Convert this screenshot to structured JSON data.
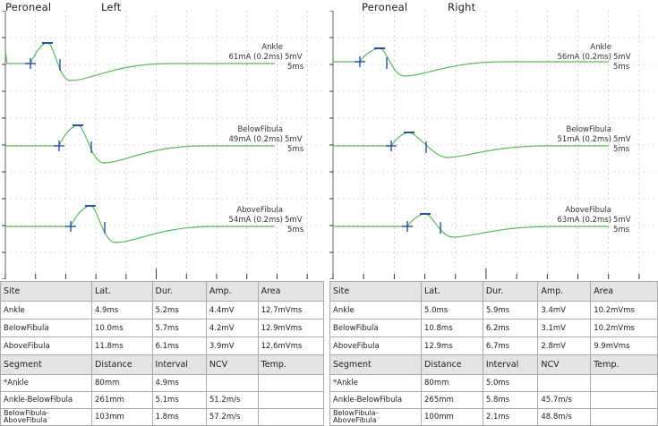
{
  "colors": {
    "trace": "#5fb85f",
    "marker": "#2b4fa3",
    "grid": "#9a9a9a",
    "table_header_bg": "#e4e4e4"
  },
  "panels": [
    {
      "nerve": "Peroneal",
      "side": "Left",
      "traces": [
        {
          "site": "Ankle",
          "stim": "61mA (0.2ms)",
          "sensitivity": "5mV",
          "sweep": "5ms"
        },
        {
          "site": "BelowFibula",
          "stim": "49mA (0.2ms)",
          "sensitivity": "5mV",
          "sweep": "5ms"
        },
        {
          "site": "AboveFibula",
          "stim": "54mA (0.2ms)",
          "sensitivity": "5mV",
          "sweep": "5ms"
        }
      ],
      "table": {
        "site_headers": [
          "Site",
          "Lat.",
          "Dur.",
          "Amp.",
          "Area"
        ],
        "site_rows": [
          [
            "Ankle",
            "4.9ms",
            "5.2ms",
            "4.4mV",
            "12.7mVms"
          ],
          [
            "BelowFibula",
            "10.0ms",
            "5.7ms",
            "4.2mV",
            "12.9mVms"
          ],
          [
            "AboveFibula",
            "11.8ms",
            "6.1ms",
            "3.9mV",
            "12.6mVms"
          ]
        ],
        "segment_headers": [
          "Segment",
          "Distance",
          "Interval",
          "NCV",
          "Temp."
        ],
        "segment_rows": [
          [
            "*Ankle",
            "80mm",
            "4.9ms",
            "",
            ""
          ],
          [
            "Ankle-BelowFibula",
            "261mm",
            "5.1ms",
            "51.2m/s",
            ""
          ],
          [
            "BelowFibula-AboveFibula",
            "103mm",
            "1.8ms",
            "57.2m/s",
            ""
          ]
        ]
      }
    },
    {
      "nerve": "Peroneal",
      "side": "Right",
      "traces": [
        {
          "site": "Ankle",
          "stim": "56mA (0.2ms)",
          "sensitivity": "5mV",
          "sweep": "5ms"
        },
        {
          "site": "BelowFibula",
          "stim": "51mA (0.2ms)",
          "sensitivity": "5mV",
          "sweep": "5ms"
        },
        {
          "site": "AboveFibula",
          "stim": "63mA (0.2ms)",
          "sensitivity": "5mV",
          "sweep": "5ms"
        }
      ],
      "table": {
        "site_headers": [
          "Site",
          "Lat.",
          "Dur.",
          "Amp.",
          "Area"
        ],
        "site_rows": [
          [
            "Ankle",
            "5.0ms",
            "5.9ms",
            "3.4mV",
            "10.2mVms"
          ],
          [
            "BelowFibula",
            "10.8ms",
            "6.2ms",
            "3.1mV",
            "10.2mVms"
          ],
          [
            "AboveFibula",
            "12.9ms",
            "6.7ms",
            "2.8mV",
            "9.9mVms"
          ]
        ],
        "segment_headers": [
          "Segment",
          "Distance",
          "Interval",
          "NCV",
          "Temp."
        ],
        "segment_rows": [
          [
            "*Ankle",
            "80mm",
            "5.0ms",
            "",
            ""
          ],
          [
            "Ankle-BelowFibula",
            "265mm",
            "5.8ms",
            "45.7m/s",
            ""
          ],
          [
            "BelowFibula-AboveFibula",
            "100mm",
            "2.1ms",
            "48.8m/s",
            ""
          ]
        ]
      }
    }
  ]
}
